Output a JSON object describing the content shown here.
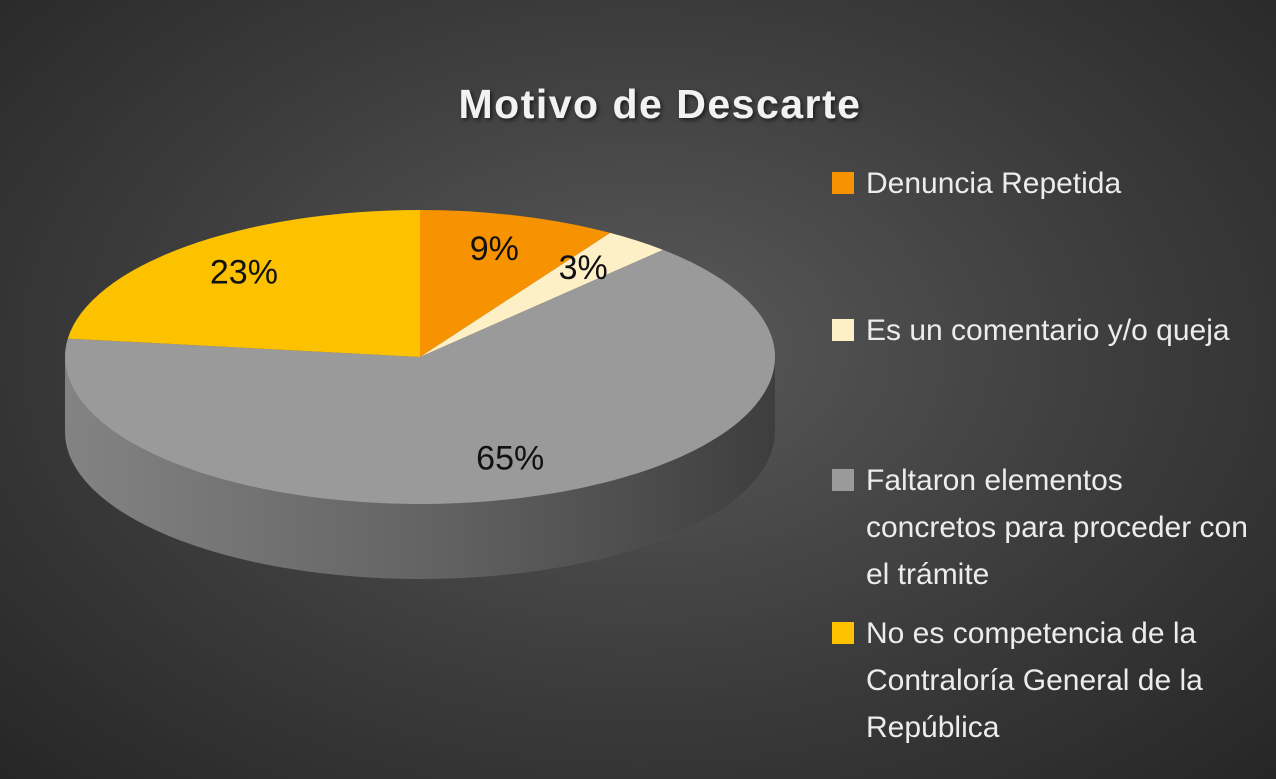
{
  "chart_data": {
    "type": "pie",
    "title": "Motivo de Descarte",
    "categories": [
      "Denuncia Repetida",
      "Es un comentario y/o queja",
      "Faltaron elementos concretos para proceder con el trámite",
      "No es competencia de la Contraloría General de la República"
    ],
    "values": [
      9,
      3,
      65,
      23
    ],
    "value_labels": [
      "9%",
      "3%",
      "65%",
      "23%"
    ],
    "colors": [
      "#f79200",
      "#fdefc6",
      "#9a9a9a",
      "#fcc200"
    ],
    "legend": "right"
  }
}
